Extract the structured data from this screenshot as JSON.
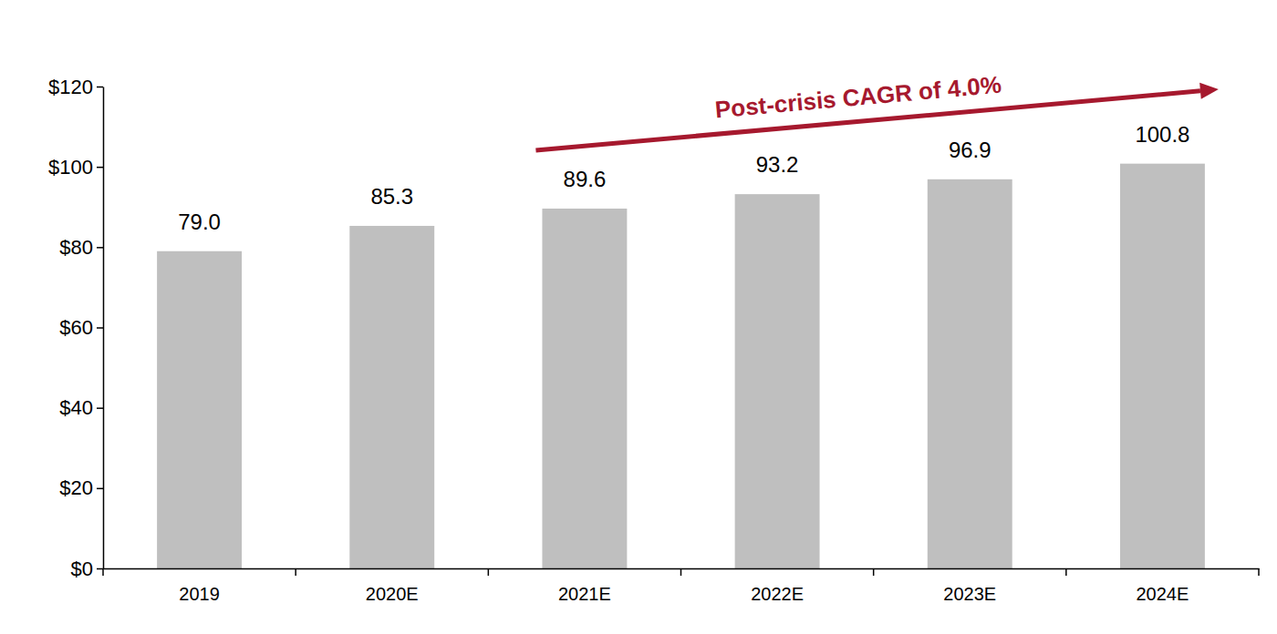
{
  "chart_data": {
    "type": "bar",
    "annotation": "Post-crisis CAGR of 4.0%",
    "annotation_color": "#a6192e",
    "categories": [
      "2019",
      "2020E",
      "2021E",
      "2022E",
      "2023E",
      "2024E"
    ],
    "values": [
      79.0,
      85.3,
      89.6,
      93.2,
      96.9,
      100.8
    ],
    "value_labels": [
      "79.0",
      "85.3",
      "89.6",
      "93.2",
      "96.9",
      "100.8"
    ],
    "color": "#bfbfbf",
    "ylim": [
      0,
      120
    ],
    "yticks": [
      {
        "value": 0,
        "label": "$0"
      },
      {
        "value": 20,
        "label": "$20"
      },
      {
        "value": 40,
        "label": "$40"
      },
      {
        "value": 60,
        "label": "$60"
      },
      {
        "value": 80,
        "label": "$80"
      },
      {
        "value": 100,
        "label": "$100"
      },
      {
        "value": 120,
        "label": "$120"
      }
    ],
    "grid": false,
    "data_labels": true
  }
}
